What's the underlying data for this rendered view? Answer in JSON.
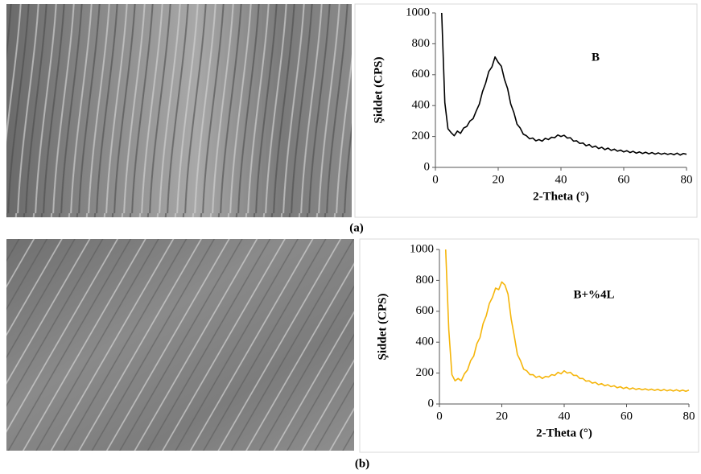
{
  "panel_labels": [
    "(a)",
    "(b)"
  ],
  "chart_data": [
    {
      "type": "line",
      "annotation": "B",
      "xlabel": "2-Theta (°)",
      "ylabel": "Şiddet (CPS)",
      "color": "#000000",
      "xlim": [
        0,
        80
      ],
      "xticks": [
        0,
        20,
        40,
        60,
        80
      ],
      "ylim": [
        0,
        1000
      ],
      "yticks": [
        0,
        200,
        400,
        600,
        800,
        1000
      ],
      "grid": false,
      "x": [
        2,
        3,
        4,
        5,
        6,
        7,
        8,
        9,
        10,
        11,
        12,
        13,
        14,
        15,
        16,
        17,
        18,
        19,
        20,
        21,
        22,
        23,
        24,
        25,
        26,
        27,
        28,
        29,
        30,
        31,
        32,
        33,
        34,
        35,
        36,
        37,
        38,
        39,
        40,
        41,
        42,
        43,
        44,
        45,
        46,
        47,
        48,
        49,
        50,
        51,
        52,
        53,
        54,
        55,
        56,
        57,
        58,
        59,
        60,
        61,
        62,
        63,
        64,
        65,
        66,
        67,
        68,
        69,
        70,
        71,
        72,
        73,
        74,
        75,
        76,
        77,
        78,
        79,
        80
      ],
      "values": [
        1000,
        420,
        250,
        225,
        205,
        235,
        220,
        255,
        265,
        300,
        315,
        365,
        410,
        490,
        545,
        620,
        650,
        715,
        680,
        655,
        570,
        510,
        410,
        355,
        280,
        255,
        215,
        205,
        185,
        190,
        172,
        180,
        170,
        188,
        180,
        195,
        192,
        210,
        200,
        208,
        190,
        192,
        170,
        172,
        155,
        158,
        140,
        148,
        130,
        138,
        122,
        130,
        115,
        125,
        110,
        118,
        105,
        112,
        100,
        108,
        96,
        104,
        92,
        100,
        90,
        98,
        88,
        96,
        86,
        94,
        85,
        92,
        84,
        90,
        82,
        92,
        80,
        90,
        85
      ]
    },
    {
      "type": "line",
      "annotation": "B+%4L",
      "xlabel": "2-Theta (°)",
      "ylabel": "Şiddet (CPS)",
      "color": "#f5b50a",
      "xlim": [
        0,
        80
      ],
      "xticks": [
        0,
        20,
        40,
        60,
        80
      ],
      "ylim": [
        0,
        1000
      ],
      "yticks": [
        0,
        200,
        400,
        600,
        800,
        1000
      ],
      "grid": false,
      "x": [
        2,
        3,
        4,
        5,
        6,
        7,
        8,
        9,
        10,
        11,
        12,
        13,
        14,
        15,
        16,
        17,
        18,
        19,
        20,
        21,
        22,
        23,
        24,
        25,
        26,
        27,
        28,
        29,
        30,
        31,
        32,
        33,
        34,
        35,
        36,
        37,
        38,
        39,
        40,
        41,
        42,
        43,
        44,
        45,
        46,
        47,
        48,
        49,
        50,
        51,
        52,
        53,
        54,
        55,
        56,
        57,
        58,
        59,
        60,
        61,
        62,
        63,
        64,
        65,
        66,
        67,
        68,
        69,
        70,
        71,
        72,
        73,
        74,
        75,
        76,
        77,
        78,
        79,
        80
      ],
      "values": [
        1000,
        480,
        190,
        150,
        165,
        150,
        195,
        220,
        280,
        310,
        390,
        430,
        520,
        570,
        650,
        690,
        750,
        740,
        790,
        770,
        710,
        550,
        440,
        320,
        280,
        225,
        215,
        190,
        190,
        172,
        180,
        165,
        178,
        175,
        190,
        185,
        205,
        195,
        215,
        200,
        205,
        185,
        185,
        165,
        165,
        148,
        150,
        135,
        140,
        125,
        132,
        118,
        125,
        112,
        118,
        105,
        112,
        100,
        108,
        96,
        104,
        94,
        100,
        92,
        98,
        90,
        96,
        88,
        95,
        86,
        94,
        85,
        92,
        84,
        92,
        83,
        90,
        82,
        90
      ]
    }
  ]
}
